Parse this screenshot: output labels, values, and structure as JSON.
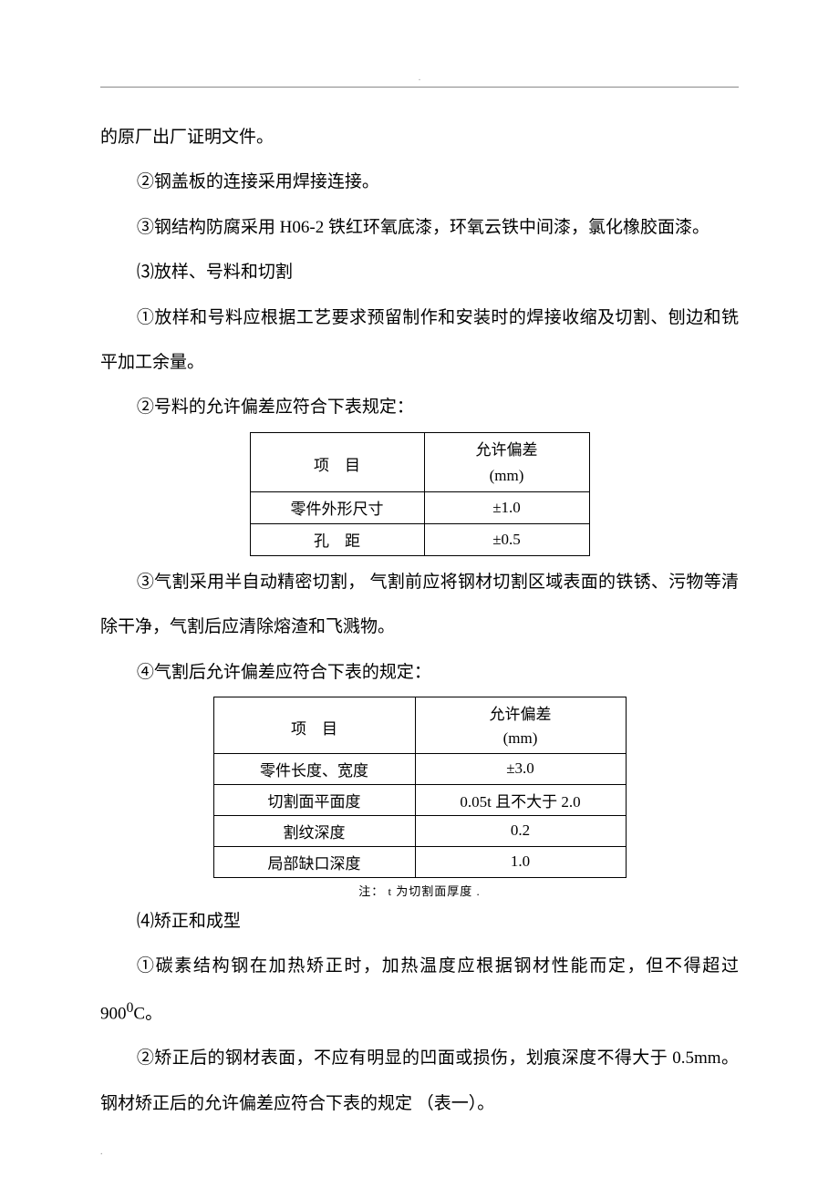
{
  "paragraphs": {
    "p1": "的原厂出厂证明文件。",
    "p2": "②钢盖板的连接采用焊接连接。",
    "p3": "③钢结构防腐采用  H06-2 铁红环氧底漆，环氧云铁中间漆，氯化橡胶面漆。",
    "p4": "⑶放样、号料和切割",
    "p5": "①放样和号料应根据工艺要求预留制作和安装时的焊接收缩及切割、刨边和铣平加工余量。",
    "p6": "②号料的允许偏差应符合下表规定：",
    "p7": "③气割采用半自动精密切割，  气割前应将钢材切割区域表面的铁锈、污物等清除干净，气割后应清除熔渣和飞溅物。",
    "p8": "④气割后允许偏差应符合下表的规定：",
    "p9": "⑷矫正和成型",
    "p10_a": "①碳素结构钢在加热矫正时，加热温度应根据钢材性能而定，但不得超过 900",
    "p10_sup": "0",
    "p10_b": "C。",
    "p11": "②矫正后的钢材表面，不应有明显的凹面或损伤，划痕深度不得大于 0.5mm。钢材矫正后的允许偏差应符合下表的规定  （表一）。"
  },
  "table1": {
    "header_item": "项　目",
    "header_dev_top": "允许偏差",
    "header_dev_unit": "(mm)",
    "rows": [
      {
        "item": "零件外形尺寸",
        "dev": "±1.0"
      },
      {
        "item": "孔　距",
        "dev": "±0.5"
      }
    ]
  },
  "table2": {
    "header_item": "项　目",
    "header_dev_top": "允许偏差",
    "header_dev_unit": "(mm)",
    "rows": [
      {
        "item": "零件长度、宽度",
        "dev": "±3.0"
      },
      {
        "item": "切割面平面度",
        "dev": "0.05t  且不大于 2.0"
      },
      {
        "item": "割纹深度",
        "dev": "0.2"
      },
      {
        "item": "局部缺口深度",
        "dev": "1.0"
      }
    ],
    "note": "注： t 为切割面厚度  ."
  },
  "decoration": {
    "top_dot": ".",
    "bottom_dot": "."
  }
}
